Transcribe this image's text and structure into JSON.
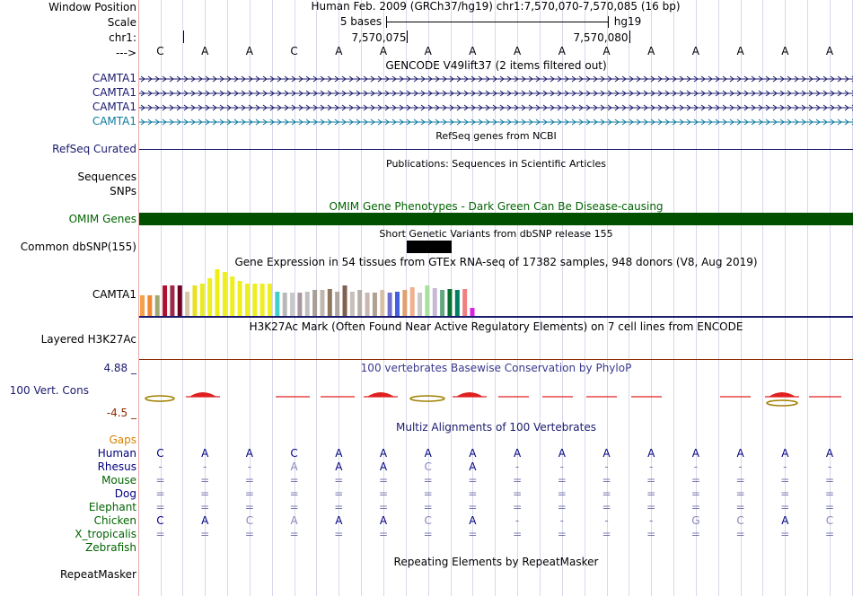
{
  "colors": {
    "label_default": "#000000",
    "label_gencode": "#1a1a6e",
    "label_refseq": "#1a1a6e",
    "label_omim": "#006400",
    "label_gaps": "#d98200",
    "label_species_dark": "#000080",
    "label_species_green": "#006400",
    "omim_bar": "#005000",
    "conservation_top": "#1a1a6e",
    "conservation_bottom": "#8b2a00"
  },
  "header": {
    "window_position_label": "Window Position",
    "window_position_value": "Human Feb. 2009 (GRCh37/hg19)   chr1:7,570,070-7,570,085 (16 bp)",
    "scale_label": "Scale",
    "scale_text": "5 bases",
    "scale_assembly": "hg19",
    "chrom_label": "chr1:",
    "pos1": "7,570,075",
    "pos2": "7,570,080",
    "strand_label": "--->"
  },
  "sequence": [
    "C",
    "A",
    "A",
    "C",
    "A",
    "A",
    "A",
    "A",
    "A",
    "A",
    "A",
    "A",
    "A",
    "A",
    "A",
    "A"
  ],
  "gencode": {
    "title": "GENCODE V49lift37 (2 items filtered out)",
    "tracks": [
      {
        "label": "CAMTA1",
        "color": "#1a1a6e"
      },
      {
        "label": "CAMTA1",
        "color": "#1a1a6e"
      },
      {
        "label": "CAMTA1",
        "color": "#1a1a6e"
      },
      {
        "label": "CAMTA1",
        "color": "#0d7aa0"
      }
    ]
  },
  "refseq": {
    "label": "RefSeq Curated",
    "title": "RefSeq genes from NCBI"
  },
  "publications": {
    "label": "Sequences",
    "title": "Publications: Sequences in Scientific Articles"
  },
  "snps": {
    "label": "SNPs"
  },
  "omim": {
    "label": "OMIM Genes",
    "title": "OMIM Gene Phenotypes - Dark Green Can Be Disease-causing"
  },
  "dbsnp": {
    "label": "Common dbSNP(155)",
    "title": "Short Genetic Variants from dbSNP release 155"
  },
  "gtex": {
    "label": "CAMTA1",
    "title": "Gene Expression in 54 tissues from GTEx RNA-seq of 17382 samples, 948 donors (V8, Aug 2019)",
    "bars": [
      {
        "v": 0.45,
        "c": "#f5a04a"
      },
      {
        "v": 0.45,
        "c": "#f08830"
      },
      {
        "v": 0.45,
        "c": "#a0a870"
      },
      {
        "v": 0.65,
        "c": "#b01030"
      },
      {
        "v": 0.65,
        "c": "#9e2848"
      },
      {
        "v": 0.65,
        "c": "#700020"
      },
      {
        "v": 0.52,
        "c": "#d8c8a8"
      },
      {
        "v": 0.65,
        "c": "#e8e020"
      },
      {
        "v": 0.7,
        "c": "#eaea20"
      },
      {
        "v": 0.8,
        "c": "#eeee20"
      },
      {
        "v": 1.0,
        "c": "#eeee10"
      },
      {
        "v": 0.95,
        "c": "#eeee20"
      },
      {
        "v": 0.85,
        "c": "#eeee20"
      },
      {
        "v": 0.75,
        "c": "#eeee20"
      },
      {
        "v": 0.7,
        "c": "#eeee20"
      },
      {
        "v": 0.7,
        "c": "#eeee20"
      },
      {
        "v": 0.7,
        "c": "#eeee20"
      },
      {
        "v": 0.7,
        "c": "#eeee20"
      },
      {
        "v": 0.52,
        "c": "#40d0c8"
      },
      {
        "v": 0.5,
        "c": "#b8b8b8"
      },
      {
        "v": 0.5,
        "c": "#c8c8c8"
      },
      {
        "v": 0.5,
        "c": "#a898a0"
      },
      {
        "v": 0.52,
        "c": "#c0c0c0"
      },
      {
        "v": 0.55,
        "c": "#a8a098"
      },
      {
        "v": 0.55,
        "c": "#c0b8b0"
      },
      {
        "v": 0.58,
        "c": "#907860"
      },
      {
        "v": 0.52,
        "c": "#b0a8a0"
      },
      {
        "v": 0.65,
        "c": "#806050"
      },
      {
        "v": 0.52,
        "c": "#c8c0b8"
      },
      {
        "v": 0.55,
        "c": "#b8b0a8"
      },
      {
        "v": 0.5,
        "c": "#c8b8b0"
      },
      {
        "v": 0.5,
        "c": "#b0a090"
      },
      {
        "v": 0.55,
        "c": "#d8c0a8"
      },
      {
        "v": 0.5,
        "c": "#7070d0"
      },
      {
        "v": 0.52,
        "c": "#4060e0"
      },
      {
        "v": 0.55,
        "c": "#e0a070"
      },
      {
        "v": 0.62,
        "c": "#f0b090"
      },
      {
        "v": 0.5,
        "c": "#c8c8c8"
      },
      {
        "v": 0.65,
        "c": "#a8e0a0"
      },
      {
        "v": 0.6,
        "c": "#c8b8d8"
      },
      {
        "v": 0.55,
        "c": "#60a880"
      },
      {
        "v": 0.58,
        "c": "#0a7030"
      },
      {
        "v": 0.55,
        "c": "#008060"
      },
      {
        "v": 0.58,
        "c": "#f08080"
      },
      {
        "v": 0.18,
        "c": "#e020e0"
      }
    ]
  },
  "h3k27ac": {
    "label": "Layered H3K27Ac",
    "title": "H3K27Ac Mark (Often Found Near Active Regulatory Elements) on 7 cell lines from ENCODE"
  },
  "conservation": {
    "label": "100 Vert. Cons",
    "top_value": "4.88 _",
    "bottom_value": "-4.5 _",
    "title": "100 vertebrates Basewise Conservation by PhyloP"
  },
  "multiz": {
    "title": "Multiz Alignments of 100 Vertebrates",
    "gaps_label": "Gaps",
    "species": [
      {
        "name": "Human",
        "color": "#000080",
        "bases": [
          "C",
          "A",
          "A",
          "C",
          "A",
          "A",
          "A",
          "A",
          "A",
          "A",
          "A",
          "A",
          "A",
          "A",
          "A",
          "A"
        ]
      },
      {
        "name": "Rhesus",
        "color": "#000080",
        "bases": [
          "-",
          "-",
          "-",
          "A",
          "A",
          "A",
          "C",
          "A",
          "-",
          "-",
          "-",
          "-",
          "-",
          "-",
          "-",
          "-"
        ]
      },
      {
        "name": "Mouse",
        "color": "#006400",
        "bases": [
          "=",
          "=",
          "=",
          "=",
          "=",
          "=",
          "=",
          "=",
          "=",
          "=",
          "=",
          "=",
          "=",
          "=",
          "=",
          "="
        ]
      },
      {
        "name": "Dog",
        "color": "#000080",
        "bases": [
          "=",
          "=",
          "=",
          "=",
          "=",
          "=",
          "=",
          "=",
          "=",
          "=",
          "=",
          "=",
          "=",
          "=",
          "=",
          "="
        ]
      },
      {
        "name": "Elephant",
        "color": "#006400",
        "bases": [
          "=",
          "=",
          "=",
          "=",
          "=",
          "=",
          "=",
          "=",
          "=",
          "=",
          "=",
          "=",
          "=",
          "=",
          "=",
          "="
        ]
      },
      {
        "name": "Chicken",
        "color": "#006400",
        "bases": [
          "C",
          "A",
          "C",
          "A",
          "A",
          "A",
          "C",
          "A",
          "-",
          "-",
          "-",
          "-",
          "G",
          "C",
          "A",
          "C"
        ]
      },
      {
        "name": "X_tropicalis",
        "color": "#006400",
        "bases": [
          "=",
          "=",
          "=",
          "=",
          "=",
          "=",
          "=",
          "=",
          "=",
          "=",
          "=",
          "=",
          "=",
          "=",
          "=",
          "="
        ]
      },
      {
        "name": "Zebrafish",
        "color": "#006400",
        "bases": [
          "",
          "",
          "",
          "",
          "",
          "",
          "",
          "",
          "",
          "",
          "",
          "",
          "",
          "",
          "",
          ""
        ]
      }
    ]
  },
  "repeatmasker": {
    "label": "RepeatMasker",
    "title": "Repeating Elements by RepeatMasker"
  }
}
